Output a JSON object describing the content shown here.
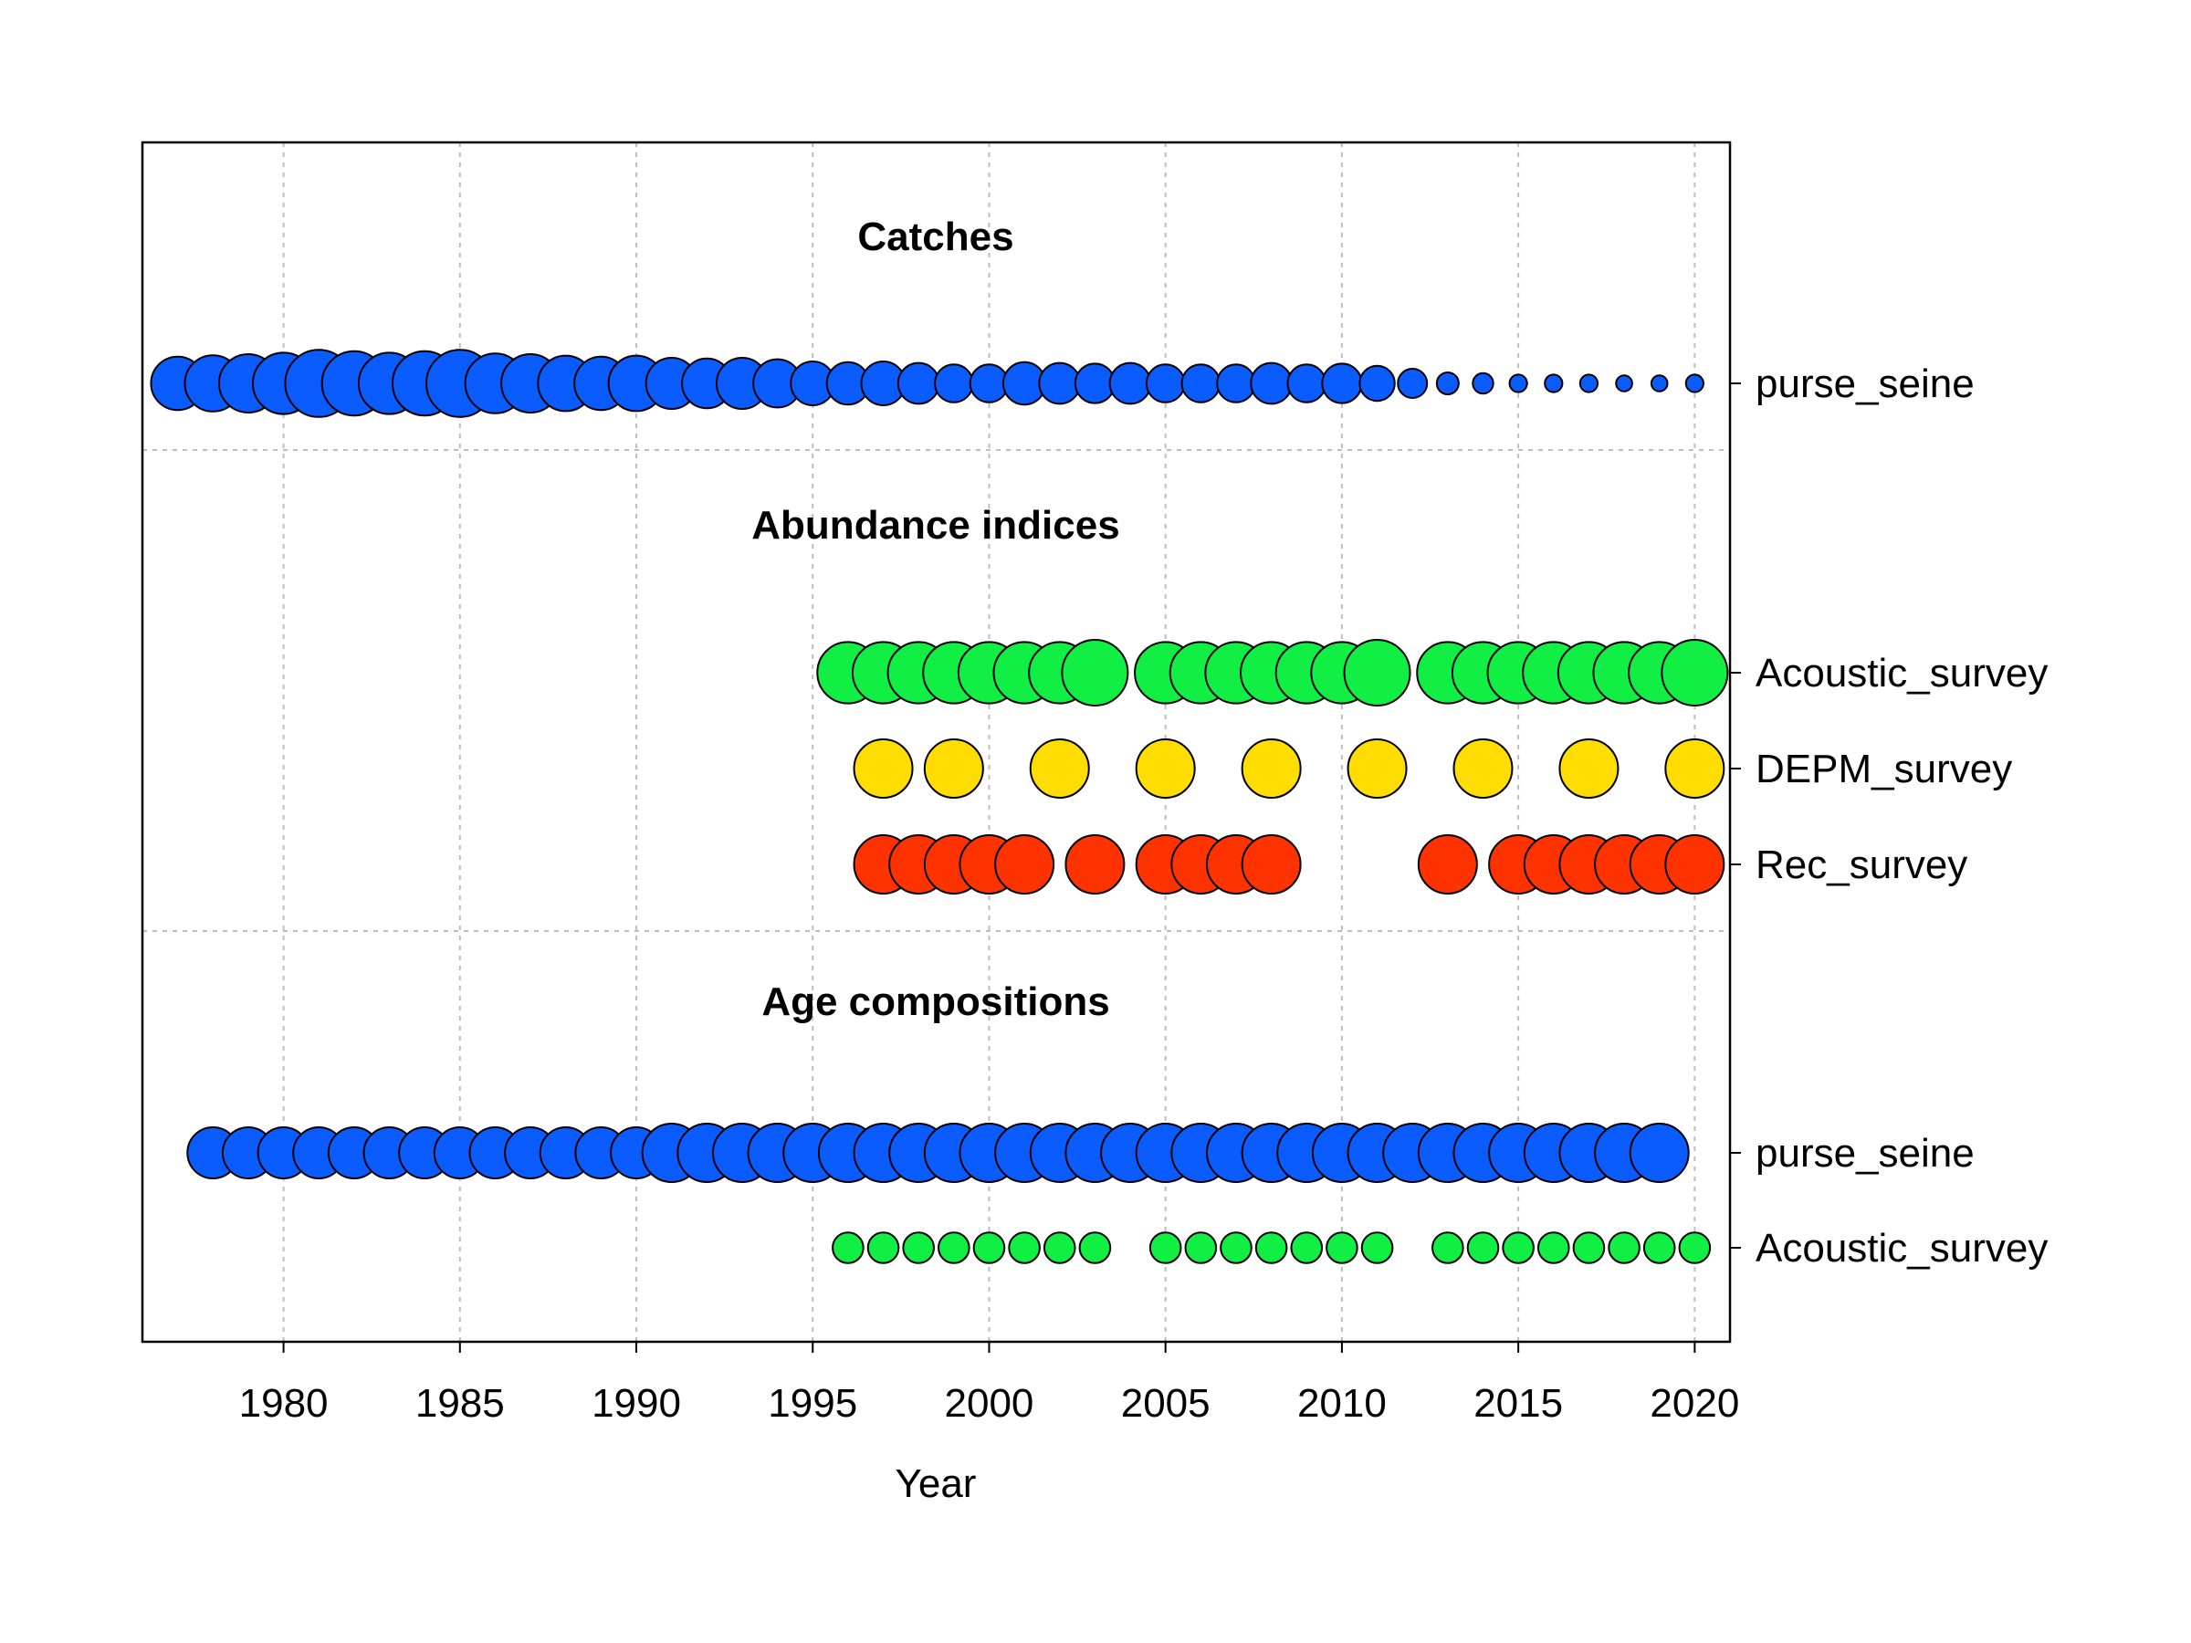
{
  "chart_data": {
    "type": "scatter",
    "xlabel": "Year",
    "xlim": [
      1976,
      2021
    ],
    "x_ticks": [
      1980,
      1985,
      1990,
      1995,
      2000,
      2005,
      2010,
      2015,
      2020
    ],
    "grid": true,
    "colors": {
      "fleet": "#0a5cff",
      "acoustic": "#11ee44",
      "depm": "#ffdd00",
      "rec": "#ff3300"
    },
    "sections": [
      {
        "title": "Catches",
        "series": [
          {
            "name": "purse_seine",
            "color_key": "fleet",
            "x": [
              1977,
              1978,
              1979,
              1980,
              1981,
              1982,
              1983,
              1984,
              1985,
              1986,
              1987,
              1988,
              1989,
              1990,
              1991,
              1992,
              1993,
              1994,
              1995,
              1996,
              1997,
              1998,
              1999,
              2000,
              2001,
              2002,
              2003,
              2004,
              2005,
              2006,
              2007,
              2008,
              2009,
              2010,
              2011,
              2012,
              2013,
              2014,
              2015,
              2016,
              2017,
              2018,
              2019,
              2020
            ],
            "values": [
              0.73,
              0.77,
              0.8,
              0.84,
              0.92,
              0.88,
              0.84,
              0.88,
              0.92,
              0.82,
              0.8,
              0.76,
              0.73,
              0.76,
              0.7,
              0.68,
              0.7,
              0.66,
              0.6,
              0.58,
              0.6,
              0.56,
              0.52,
              0.52,
              0.58,
              0.56,
              0.54,
              0.56,
              0.52,
              0.52,
              0.52,
              0.56,
              0.52,
              0.54,
              0.48,
              0.4,
              0.3,
              0.28,
              0.24,
              0.24,
              0.24,
              0.22,
              0.22,
              0.24
            ]
          }
        ]
      },
      {
        "title": "Abundance indices",
        "series": [
          {
            "name": "Acoustic_survey",
            "color_key": "acoustic",
            "x": [
              1996,
              1997,
              1998,
              1999,
              2000,
              2001,
              2002,
              2003,
              2005,
              2006,
              2007,
              2008,
              2009,
              2010,
              2011,
              2013,
              2014,
              2015,
              2016,
              2017,
              2018,
              2019,
              2020
            ],
            "values": [
              0.84,
              0.84,
              0.84,
              0.84,
              0.84,
              0.84,
              0.84,
              0.9,
              0.84,
              0.84,
              0.84,
              0.84,
              0.84,
              0.84,
              0.9,
              0.84,
              0.84,
              0.84,
              0.84,
              0.84,
              0.84,
              0.84,
              0.9
            ]
          },
          {
            "name": "DEPM_survey",
            "color_key": "depm",
            "x": [
              1997,
              1999,
              2002,
              2005,
              2008,
              2011,
              2014,
              2017,
              2020
            ],
            "values": [
              0.8,
              0.8,
              0.8,
              0.8,
              0.8,
              0.8,
              0.8,
              0.8,
              0.8
            ]
          },
          {
            "name": "Rec_survey",
            "color_key": "rec",
            "x": [
              1997,
              1998,
              1999,
              2000,
              2001,
              2003,
              2005,
              2006,
              2007,
              2008,
              2013,
              2015,
              2016,
              2017,
              2018,
              2019,
              2020
            ],
            "values": [
              0.8,
              0.8,
              0.8,
              0.8,
              0.8,
              0.8,
              0.8,
              0.8,
              0.8,
              0.8,
              0.8,
              0.8,
              0.8,
              0.8,
              0.8,
              0.8,
              0.8
            ]
          }
        ]
      },
      {
        "title": "Age compositions",
        "series": [
          {
            "name": "purse_seine",
            "color_key": "fleet",
            "x": [
              1978,
              1979,
              1980,
              1981,
              1982,
              1983,
              1984,
              1985,
              1986,
              1987,
              1988,
              1989,
              1990,
              1991,
              1992,
              1993,
              1994,
              1995,
              1996,
              1997,
              1998,
              1999,
              2000,
              2001,
              2002,
              2003,
              2004,
              2005,
              2006,
              2007,
              2008,
              2009,
              2010,
              2011,
              2012,
              2013,
              2014,
              2015,
              2016,
              2017,
              2018,
              2019
            ],
            "values": [
              0.7,
              0.7,
              0.7,
              0.7,
              0.7,
              0.7,
              0.7,
              0.7,
              0.7,
              0.7,
              0.7,
              0.7,
              0.7,
              0.8,
              0.8,
              0.8,
              0.8,
              0.8,
              0.8,
              0.8,
              0.8,
              0.8,
              0.8,
              0.8,
              0.8,
              0.8,
              0.8,
              0.8,
              0.8,
              0.8,
              0.8,
              0.8,
              0.8,
              0.8,
              0.8,
              0.8,
              0.8,
              0.8,
              0.8,
              0.8,
              0.8,
              0.8
            ]
          },
          {
            "name": "Acoustic_survey",
            "color_key": "acoustic",
            "x": [
              1996,
              1997,
              1998,
              1999,
              2000,
              2001,
              2002,
              2003,
              2005,
              2006,
              2007,
              2008,
              2009,
              2010,
              2011,
              2013,
              2014,
              2015,
              2016,
              2017,
              2018,
              2019,
              2020
            ],
            "values": [
              0.42,
              0.42,
              0.42,
              0.42,
              0.42,
              0.42,
              0.42,
              0.42,
              0.42,
              0.42,
              0.42,
              0.42,
              0.42,
              0.42,
              0.42,
              0.42,
              0.42,
              0.42,
              0.42,
              0.42,
              0.42,
              0.42,
              0.42
            ]
          }
        ]
      }
    ]
  }
}
